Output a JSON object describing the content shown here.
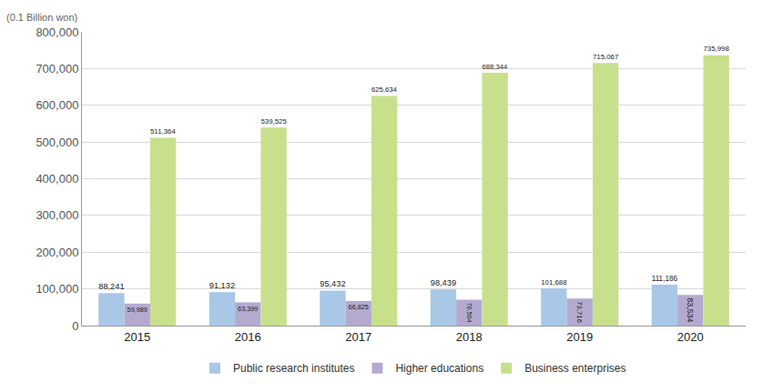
{
  "chart_data": {
    "type": "bar",
    "y_label": "(0.1 Billion won)",
    "categories": [
      "2015",
      "2016",
      "2017",
      "2018",
      "2019",
      "2020"
    ],
    "series": [
      {
        "name": "Public research institutes",
        "color": "#a9c8e8",
        "values": [
          88241,
          91132,
          95432,
          98439,
          101688,
          111186
        ],
        "value_labels": [
          "88,241",
          "91,132",
          "95,432",
          "98,439",
          "101,688",
          "111,186"
        ]
      },
      {
        "name": "Higher educations",
        "color": "#b4aad0",
        "values": [
          59989,
          63399,
          66825,
          70504,
          73716,
          83534
        ],
        "value_labels": [
          "59,989",
          "63,399",
          "66,825",
          "70,504",
          "73,716",
          "83,534"
        ]
      },
      {
        "name": "Business enterprises",
        "color": "#c8e08c",
        "values": [
          511364,
          539525,
          625634,
          688344,
          715067,
          735998
        ],
        "value_labels": [
          "511,364",
          "539,525",
          "625,634",
          "688,344",
          "715,067",
          "735,998"
        ]
      }
    ],
    "ylim": [
      0,
      800000
    ],
    "yticks": [
      0,
      {
        "value": 100000,
        "label": "100,000"
      },
      {
        "value": 200000,
        "label": "200,000"
      },
      {
        "value": 300000,
        "label": "300,000"
      },
      {
        "value": 400000,
        "label": "400,000"
      },
      {
        "value": 500000,
        "label": "500,000"
      },
      {
        "value": 600000,
        "label": "600,000"
      },
      {
        "value": 700000,
        "label": "700,000"
      },
      {
        "value": 800000,
        "label": "800,000"
      }
    ],
    "grid": true,
    "data_labels": true,
    "legend": "bottom"
  }
}
